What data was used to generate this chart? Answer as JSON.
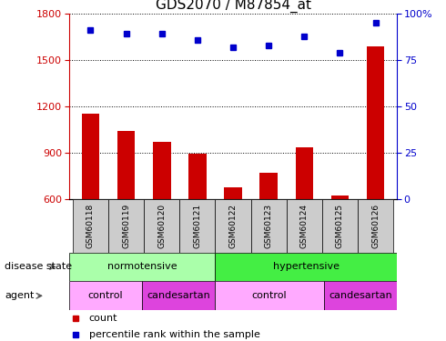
{
  "title": "GDS2070 / M87854_at",
  "samples": [
    "GSM60118",
    "GSM60119",
    "GSM60120",
    "GSM60121",
    "GSM60122",
    "GSM60123",
    "GSM60124",
    "GSM60125",
    "GSM60126"
  ],
  "counts": [
    1155,
    1040,
    975,
    895,
    680,
    775,
    935,
    625,
    1590
  ],
  "percentiles": [
    91,
    89,
    89,
    86,
    82,
    83,
    88,
    79,
    95
  ],
  "ylim_left": [
    600,
    1800
  ],
  "ylim_right": [
    0,
    100
  ],
  "yticks_left": [
    600,
    900,
    1200,
    1500,
    1800
  ],
  "yticks_right": [
    0,
    25,
    50,
    75,
    100
  ],
  "bar_color": "#cc0000",
  "dot_color": "#0000cc",
  "norm_color": "#aaffaa",
  "hyper_color": "#44ee44",
  "control_color": "#ffaaff",
  "candesartan_color": "#dd44dd",
  "legend_count_color": "#cc0000",
  "legend_dot_color": "#0000cc",
  "left_axis_color": "#cc0000",
  "right_axis_color": "#0000cc",
  "xlabel_bg": "#cccccc",
  "label_fontsize": 8,
  "tick_fontsize": 8,
  "title_fontsize": 11,
  "bar_width": 0.5,
  "dot_marker": "s",
  "dot_size": 5
}
